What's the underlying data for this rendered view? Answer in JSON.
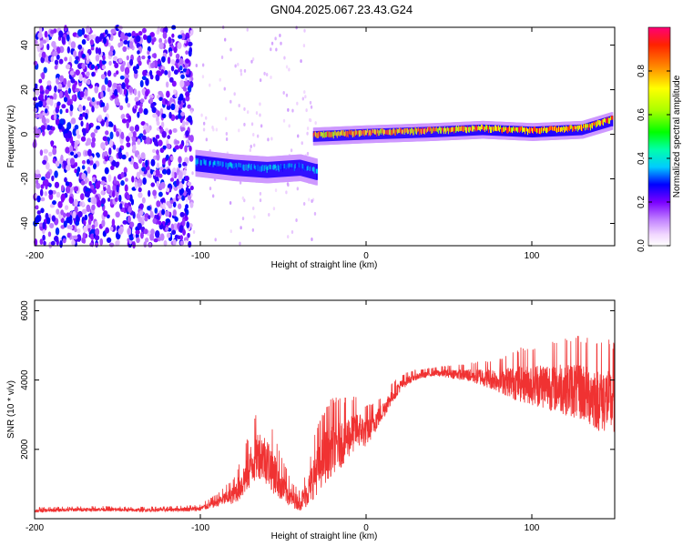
{
  "title": "GN04.2025.067.23.43.G24",
  "chart_data": [
    {
      "type": "heatmap",
      "xlabel": "Height of straight line (km)",
      "ylabel": "Frequency (Hz)",
      "xlim": [
        -200,
        150
      ],
      "ylim": [
        -50,
        48
      ],
      "x_ticks": [
        -200,
        -100,
        0,
        100
      ],
      "y_ticks": [
        -40,
        -20,
        0,
        20,
        40
      ],
      "colorbar": {
        "label": "Normalized spectral amplitude",
        "range": [
          0,
          1
        ],
        "ticks": [
          0.0,
          0.2,
          0.4,
          0.6,
          0.8
        ],
        "tick_labels": [
          "0.0",
          "0.2",
          "0.4",
          "0.6",
          "0.8"
        ]
      },
      "regions": [
        {
          "description": "noise",
          "x_range": [
            -200,
            -105
          ],
          "freq_range": [
            -50,
            48
          ],
          "amplitude": 0.15
        },
        {
          "description": "signal track",
          "x": [
            -103,
            -80,
            -60,
            -40,
            -30
          ],
          "freq": [
            -13,
            -15,
            -16,
            -15,
            -17
          ],
          "amplitude": 0.35
        },
        {
          "description": "signal track",
          "x": [
            -32,
            0,
            40,
            70,
            100,
            130,
            148
          ],
          "freq": [
            -1,
            0,
            1,
            2,
            1,
            2,
            6
          ],
          "amplitude": 0.85
        }
      ]
    },
    {
      "type": "line",
      "xlabel": "Height of straight line (km)",
      "ylabel": "SNR (10 * v/v)",
      "xlim": [
        -200,
        150
      ],
      "ylim": [
        0,
        6300
      ],
      "x_ticks": [
        -200,
        -100,
        0,
        100
      ],
      "y_ticks": [
        2000,
        4000,
        6000
      ],
      "color": "#f03232",
      "series": [
        {
          "x": [
            -200,
            -180,
            -160,
            -140,
            -120,
            -100,
            -90,
            -80,
            -75,
            -70,
            -65,
            -60,
            -55,
            -50,
            -45,
            -40,
            -35,
            -30,
            -25,
            -20,
            -15,
            -10,
            -5,
            0,
            5,
            10,
            15,
            20,
            25,
            30,
            40,
            50,
            60,
            70,
            80,
            90,
            100,
            110,
            120,
            130,
            140,
            150
          ],
          "y": [
            230,
            260,
            270,
            250,
            260,
            290,
            480,
            700,
            1000,
            1500,
            1900,
            1700,
            1300,
            900,
            600,
            450,
            800,
            1400,
            1800,
            2100,
            2200,
            2400,
            2600,
            2500,
            2800,
            3100,
            3500,
            3800,
            4000,
            4100,
            4200,
            4200,
            4150,
            4100,
            4000,
            3950,
            3900,
            3850,
            3800,
            3700,
            3500,
            3400
          ],
          "spread": [
            60,
            60,
            60,
            60,
            60,
            80,
            150,
            300,
            500,
            700,
            800,
            800,
            700,
            500,
            300,
            250,
            500,
            800,
            900,
            900,
            800,
            700,
            600,
            500,
            400,
            300,
            250,
            200,
            150,
            120,
            100,
            150,
            200,
            300,
            400,
            600,
            700,
            800,
            900,
            1000,
            1100,
            1100
          ]
        }
      ]
    }
  ]
}
